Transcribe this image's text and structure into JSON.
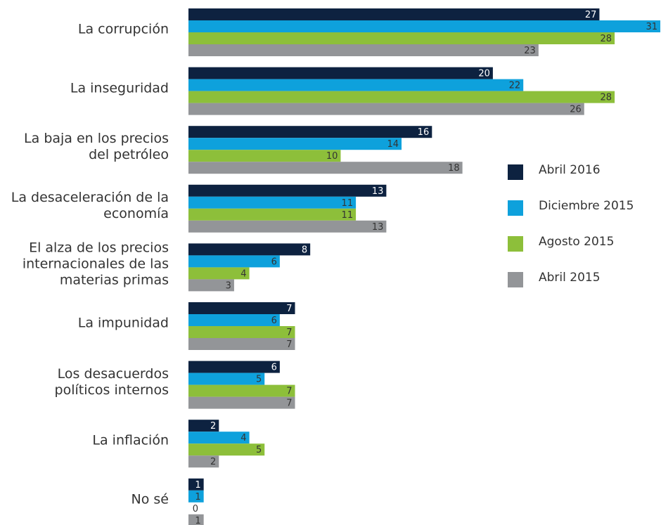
{
  "chart_data": {
    "type": "bar",
    "orientation": "horizontal",
    "categories": [
      "La corrupción",
      "La inseguridad",
      "La baja en los precios\ndel petróleo",
      "La desaceleración de la\neconomía",
      "El alza de los precios\ninternacionales de las\nmaterias primas",
      "La impunidad",
      "Los desacuerdos\npolíticos internos",
      "La inflación",
      "No sé"
    ],
    "series": [
      {
        "name": "Abril 2016",
        "color": "#0d2240",
        "values": [
          27,
          20,
          16,
          13,
          8,
          7,
          6,
          2,
          1
        ]
      },
      {
        "name": "Diciembre 2015",
        "color": "#0ea1dc",
        "values": [
          31,
          22,
          14,
          11,
          6,
          6,
          5,
          4,
          1
        ]
      },
      {
        "name": "Agosto 2015",
        "color": "#8dbf3a",
        "values": [
          28,
          28,
          10,
          11,
          4,
          7,
          7,
          5,
          0
        ]
      },
      {
        "name": "Abril 2015",
        "color": "#939598",
        "values": [
          23,
          26,
          18,
          13,
          3,
          7,
          7,
          2,
          1
        ]
      }
    ],
    "xlim": [
      0,
      31
    ],
    "legend": "right"
  }
}
